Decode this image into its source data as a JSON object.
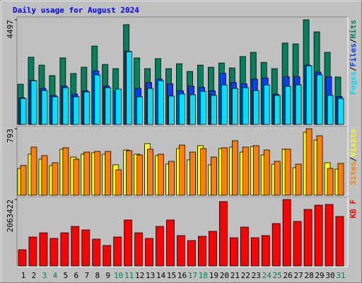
{
  "chart_data": [
    {
      "type": "bar",
      "title": "Daily usage for August 2024",
      "ylim": [
        0,
        4497
      ],
      "yticks": [
        4497
      ],
      "legend_separator": "/",
      "series": [
        {
          "name": "Hits",
          "color": "#00805c",
          "values": [
            1730,
            2890,
            2550,
            2100,
            2860,
            2190,
            2460,
            3370,
            2580,
            2400,
            4290,
            2860,
            2400,
            2830,
            2400,
            2610,
            2280,
            2550,
            2460,
            2640,
            2430,
            2920,
            3100,
            2670,
            2400,
            3500,
            3460,
            4497,
            3980,
            3100,
            2040
          ]
        },
        {
          "name": "Files",
          "color": "#0040ff",
          "values": [
            1150,
            1900,
            1550,
            1250,
            1650,
            1300,
            1450,
            2300,
            1650,
            1400,
            3150,
            1550,
            1800,
            1950,
            1750,
            1450,
            1650,
            1600,
            1450,
            2200,
            1800,
            1750,
            1950,
            2000,
            1300,
            2050,
            2050,
            2550,
            2250,
            2050,
            1200
          ]
        },
        {
          "name": "Pages",
          "color": "#00e0ff",
          "values": [
            1120,
            1880,
            1460,
            1190,
            1580,
            1190,
            1400,
            2130,
            1580,
            1520,
            3130,
            1190,
            1550,
            1880,
            1220,
            1310,
            1280,
            1430,
            1250,
            1700,
            1550,
            1580,
            1460,
            1700,
            1250,
            1640,
            1700,
            2520,
            2130,
            1250,
            1120
          ]
        }
      ]
    },
    {
      "type": "bar",
      "ylim": [
        0,
        793
      ],
      "yticks": [
        793
      ],
      "legend_separator": "/",
      "series": [
        {
          "name": "Visits",
          "color": "#ffff00",
          "values": [
            320,
            490,
            430,
            355,
            549,
            456,
            490,
            507,
            490,
            363,
            540,
            490,
            616,
            473,
            371,
            557,
            422,
            591,
            363,
            557,
            574,
            515,
            582,
            481,
            371,
            549,
            329,
            751,
            658,
            388,
            312
          ]
        },
        {
          "name": "Sites",
          "color": "#ff8000",
          "values": [
            355,
            574,
            473,
            388,
            566,
            430,
            515,
            523,
            523,
            304,
            532,
            481,
            549,
            490,
            405,
            599,
            515,
            557,
            456,
            566,
            650,
            574,
            591,
            540,
            405,
            549,
            371,
            793,
            709,
            320,
            380
          ]
        }
      ]
    },
    {
      "type": "bar",
      "ylim": [
        0,
        2063422
      ],
      "yticks": [
        2063422
      ],
      "series": [
        {
          "name": "KB F",
          "color": "#ff0000",
          "values": [
            505000,
            900000,
            1030000,
            856000,
            1030000,
            1229000,
            1120000,
            834000,
            637000,
            900000,
            1427000,
            1030000,
            856000,
            1229000,
            1427000,
            944000,
            790000,
            922000,
            1076000,
            1998000,
            878000,
            1207000,
            878000,
            944000,
            1317000,
            2063422,
            1383000,
            1756000,
            1888000,
            1910000,
            1537000
          ]
        }
      ],
      "categories": [
        "1",
        "2",
        "3",
        "4",
        "5",
        "6",
        "7",
        "8",
        "9",
        "10",
        "11",
        "12",
        "13",
        "14",
        "15",
        "16",
        "17",
        "18",
        "19",
        "20",
        "21",
        "22",
        "23",
        "24",
        "25",
        "26",
        "27",
        "28",
        "29",
        "30",
        "31"
      ],
      "highlight": [
        2,
        3,
        9,
        10,
        16,
        17,
        23,
        24,
        30
      ],
      "highlight_color": "#00805c"
    }
  ]
}
